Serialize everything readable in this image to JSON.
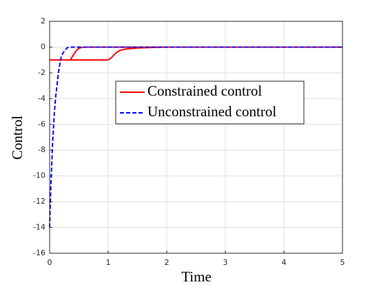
{
  "chart_data": {
    "type": "line",
    "xlabel": "Time",
    "ylabel": "Control",
    "xlim": [
      0,
      5
    ],
    "xticks": [
      0,
      1,
      2,
      3,
      4,
      5
    ],
    "ylim": [
      -16,
      2
    ],
    "yticks": [
      -16,
      -14,
      -12,
      -10,
      -8,
      -6,
      -4,
      -2,
      0,
      2
    ],
    "grid": true,
    "legend": "center",
    "series": [
      {
        "name": "Constrained control",
        "color": "#ff0000",
        "style": "solid",
        "x": [
          0,
          0.35,
          0.38,
          0.42,
          0.46,
          0.5,
          0.55,
          0.6,
          5,
          null,
          0,
          1.0,
          1.05,
          1.1,
          1.15,
          1.2,
          1.3,
          1.5,
          1.8,
          2.0,
          5
        ],
        "values": [
          -1,
          -1,
          -0.8,
          -0.5,
          -0.25,
          -0.1,
          -0.02,
          0,
          0,
          null,
          -1,
          -1,
          -0.85,
          -0.6,
          -0.4,
          -0.25,
          -0.15,
          -0.07,
          -0.02,
          0,
          0
        ]
      },
      {
        "name": "Unconstrained control",
        "color": "#0000ff",
        "style": "dashed",
        "x": [
          0,
          0.02,
          0.05,
          0.08,
          0.1,
          0.13,
          0.15,
          0.18,
          0.2,
          0.25,
          0.3,
          0.35,
          0.5,
          5
        ],
        "values": [
          -14,
          -11,
          -7.5,
          -5.2,
          -4,
          -2.8,
          -2,
          -1.2,
          -0.7,
          -0.3,
          -0.05,
          0,
          0,
          0
        ]
      }
    ]
  }
}
